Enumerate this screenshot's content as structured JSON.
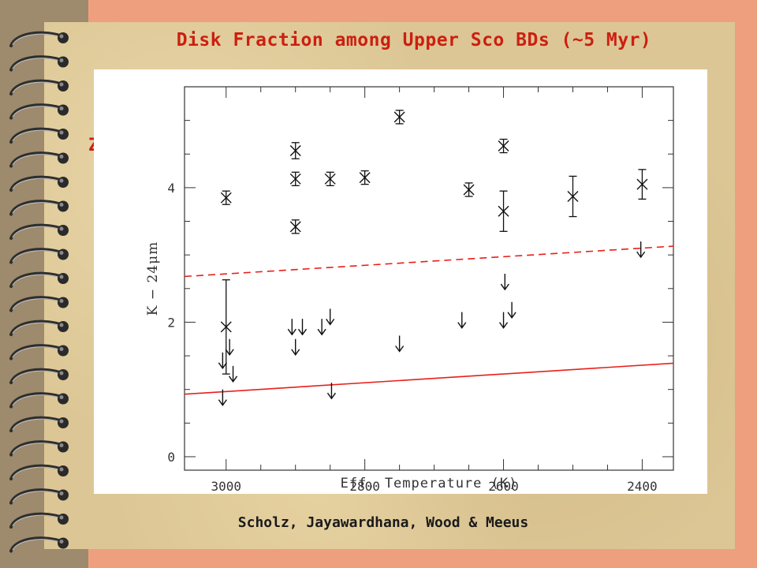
{
  "slide": {
    "title": "Disk Fraction among Upper Sco BDs (~5 Myr)",
    "partial_text": "Z",
    "footer": "Scholz, Jayawardhana, Wood & Meeus"
  },
  "colors": {
    "title": "#cc1f10",
    "background": "#eea07e",
    "paper": "#dcc695",
    "binder": "#9e8a6c",
    "model_lines": "#e8201a"
  },
  "chart_data": {
    "type": "scatter",
    "xlabel": "Eff. Temperature (K)",
    "ylabel": "K − 24μm",
    "xlim": [
      3060,
      2355
    ],
    "ylim": [
      -0.2,
      5.5
    ],
    "x_reversed": true,
    "x_ticks": [
      3000,
      2800,
      2600,
      2400
    ],
    "x_tick_labels": [
      "3000",
      "2800",
      "2600",
      "2400"
    ],
    "y_ticks": [
      0,
      2,
      4
    ],
    "y_tick_labels": [
      "0",
      "2",
      "4"
    ],
    "grid": false,
    "series": [
      {
        "kind": "detections",
        "points": [
          {
            "x": 3000,
            "y": 3.85,
            "err": 0.1
          },
          {
            "x": 3000,
            "y": 1.93,
            "err": 0.7
          },
          {
            "x": 2900,
            "y": 4.55,
            "err": 0.12
          },
          {
            "x": 2900,
            "y": 4.13,
            "err": 0.1
          },
          {
            "x": 2900,
            "y": 3.42,
            "err": 0.1
          },
          {
            "x": 2850,
            "y": 4.13,
            "err": 0.1
          },
          {
            "x": 2800,
            "y": 4.15,
            "err": 0.1
          },
          {
            "x": 2750,
            "y": 5.05,
            "err": 0.1
          },
          {
            "x": 2650,
            "y": 3.97,
            "err": 0.1
          },
          {
            "x": 2600,
            "y": 4.62,
            "err": 0.1
          },
          {
            "x": 2600,
            "y": 3.65,
            "err": 0.3
          },
          {
            "x": 2500,
            "y": 3.87,
            "err": 0.3
          },
          {
            "x": 2400,
            "y": 4.05,
            "err": 0.22
          }
        ]
      },
      {
        "kind": "upper_limits",
        "points": [
          {
            "x": 3005,
            "y": 1.55
          },
          {
            "x": 2995,
            "y": 1.75
          },
          {
            "x": 2990,
            "y": 1.35
          },
          {
            "x": 3005,
            "y": 1.0
          },
          {
            "x": 2905,
            "y": 2.05
          },
          {
            "x": 2890,
            "y": 2.05
          },
          {
            "x": 2900,
            "y": 1.75
          },
          {
            "x": 2862,
            "y": 2.05
          },
          {
            "x": 2850,
            "y": 2.2
          },
          {
            "x": 2848,
            "y": 1.1
          },
          {
            "x": 2750,
            "y": 1.8
          },
          {
            "x": 2660,
            "y": 2.15
          },
          {
            "x": 2598,
            "y": 2.72
          },
          {
            "x": 2600,
            "y": 2.15
          },
          {
            "x": 2588,
            "y": 2.3
          },
          {
            "x": 2402,
            "y": 3.2
          }
        ]
      },
      {
        "kind": "model_dashed",
        "x": [
          3060,
          2355
        ],
        "y": [
          2.68,
          3.13
        ]
      },
      {
        "kind": "model_solid",
        "x": [
          3060,
          2355
        ],
        "y": [
          0.93,
          1.39
        ]
      }
    ]
  }
}
